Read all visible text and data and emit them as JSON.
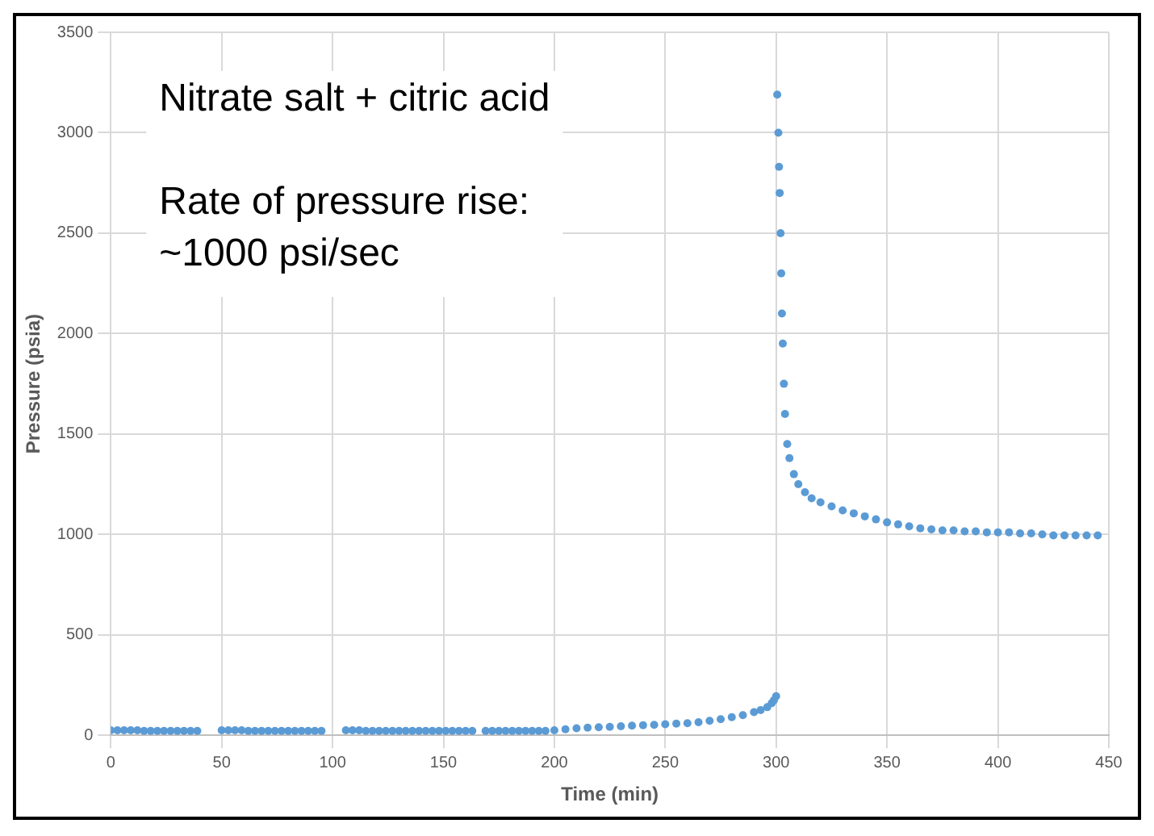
{
  "chart_data": {
    "type": "scatter",
    "xlabel": "Time (min)",
    "ylabel": "Pressure (psia)",
    "annotations": [
      "Nitrate salt + citric acid",
      "Rate of pressure rise:\n~1000 psi/sec"
    ],
    "series": [
      {
        "color": "#5b9bd5",
        "x": [
          0,
          3,
          6,
          9,
          12,
          15,
          18,
          21,
          24,
          27,
          30,
          33,
          36,
          39,
          50,
          53,
          56,
          59,
          62,
          65,
          68,
          71,
          74,
          77,
          80,
          83,
          86,
          89,
          92,
          95,
          106,
          109,
          112,
          115,
          118,
          121,
          124,
          127,
          130,
          133,
          136,
          139,
          142,
          145,
          148,
          151,
          154,
          157,
          160,
          163,
          169,
          172,
          175,
          178,
          181,
          184,
          187,
          190,
          193,
          196,
          200,
          205,
          210,
          215,
          220,
          225,
          230,
          235,
          240,
          245,
          250,
          255,
          260,
          265,
          270,
          275,
          280,
          285,
          290,
          293,
          296,
          298,
          299,
          300,
          300.5,
          301,
          301.3,
          301.6,
          302,
          302.3,
          302.6,
          303,
          303.5,
          304,
          305,
          306,
          308,
          310,
          313,
          316,
          320,
          325,
          330,
          335,
          340,
          345,
          350,
          355,
          360,
          365,
          370,
          375,
          380,
          385,
          390,
          395,
          400,
          405,
          410,
          415,
          420,
          425,
          430,
          435,
          440,
          445
        ],
        "values": [
          25,
          25,
          25,
          25,
          25,
          22,
          22,
          22,
          22,
          22,
          22,
          22,
          22,
          22,
          25,
          25,
          25,
          25,
          22,
          22,
          22,
          22,
          22,
          22,
          22,
          22,
          22,
          22,
          22,
          22,
          25,
          25,
          25,
          22,
          22,
          22,
          22,
          22,
          22,
          22,
          22,
          22,
          22,
          22,
          22,
          22,
          22,
          22,
          22,
          22,
          22,
          22,
          22,
          22,
          22,
          22,
          22,
          22,
          22,
          22,
          25,
          30,
          35,
          38,
          40,
          42,
          45,
          48,
          50,
          52,
          55,
          58,
          60,
          65,
          72,
          80,
          90,
          100,
          115,
          125,
          140,
          160,
          175,
          195,
          3190,
          3000,
          2830,
          2700,
          2500,
          2300,
          2100,
          1950,
          1750,
          1600,
          1450,
          1380,
          1300,
          1250,
          1210,
          1180,
          1160,
          1140,
          1120,
          1105,
          1090,
          1075,
          1060,
          1050,
          1040,
          1030,
          1025,
          1020,
          1020,
          1015,
          1015,
          1010,
          1010,
          1010,
          1005,
          1005,
          1000,
          995,
          995,
          995,
          995,
          995
        ]
      }
    ],
    "xlim": [
      0,
      450
    ],
    "xticks": [
      0,
      50,
      100,
      150,
      200,
      250,
      300,
      350,
      400,
      450
    ],
    "ylim": [
      0,
      3500
    ],
    "yticks": [
      0,
      500,
      1000,
      1500,
      2000,
      2500,
      3000,
      3500
    ],
    "grid": true,
    "legend": false,
    "marker": "circle"
  }
}
